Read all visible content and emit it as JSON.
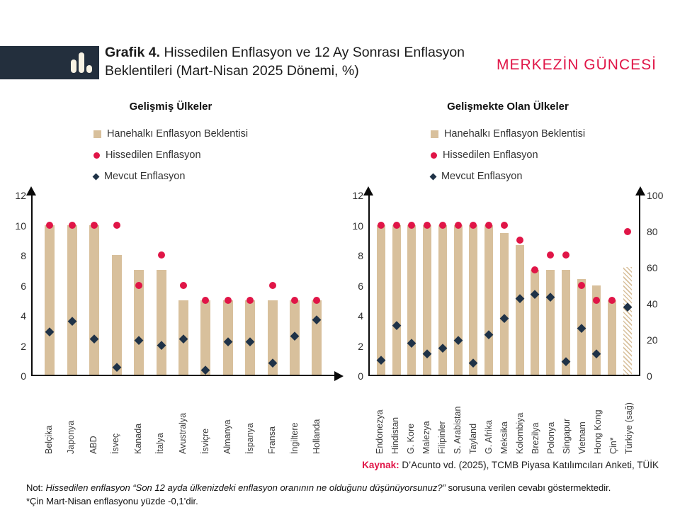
{
  "header": {
    "title_bold": "Grafik 4.",
    "title_rest": " Hissedilen Enflasyon ve 12 Ay Sonrası Enflasyon Beklentileri (Mart-Nisan 2025 Dönemi, %)",
    "brand": "MERKEZİN GÜNCESİ",
    "logo_icon": "bar-chart-icon"
  },
  "colors": {
    "bar": "#d8c09c",
    "perceived": "#e01547",
    "current": "#1f3247",
    "accent": "#e01547",
    "logo_bg": "#232f3d"
  },
  "legend": {
    "bar_label": "Hanehalkı Enflasyon Beklentisi",
    "dot_label": "Hissedilen Enflasyon",
    "diamond_label": "Mevcut Enflasyon"
  },
  "chart_data": [
    {
      "type": "bar",
      "title": "Gelişmiş Ülkeler",
      "categories": [
        "Belçika",
        "Japonya",
        "ABD",
        "İsveç",
        "Kanada",
        "İtalya",
        "Avustralya",
        "İsviçre",
        "Almanya",
        "İspanya",
        "Fransa",
        "İngiltere",
        "Hollanda"
      ],
      "series": [
        {
          "name": "Hanehalkı Enflasyon Beklentisi",
          "marker": "bar",
          "values": [
            10,
            10,
            10,
            8,
            7,
            7,
            5,
            5,
            5,
            5,
            5,
            5,
            5
          ]
        },
        {
          "name": "Hissedilen Enflasyon",
          "marker": "dot",
          "values": [
            10,
            10,
            10,
            10,
            6,
            8,
            6,
            5,
            5,
            5,
            6,
            5,
            5
          ]
        },
        {
          "name": "Mevcut Enflasyon",
          "marker": "diamond",
          "values": [
            2.9,
            3.6,
            2.4,
            0.5,
            2.3,
            2.0,
            2.4,
            0.3,
            2.2,
            2.2,
            0.8,
            2.6,
            3.7
          ]
        }
      ],
      "ylim": [
        0,
        12
      ],
      "yticks": [
        0,
        2,
        4,
        6,
        8,
        10,
        12
      ],
      "grid": false,
      "legend_position": "top-center",
      "x_arrow": true
    },
    {
      "type": "bar",
      "title": "Gelişmekte Olan Ülkeler",
      "categories": [
        "Endonezya",
        "Hindistan",
        "G. Kore",
        "Malezya",
        "Filipinler",
        "S. Arabistan",
        "Tayland",
        "G. Afrika",
        "Meksika",
        "Kolombiya",
        "Brezilya",
        "Polonya",
        "Singapur",
        "Vietnam",
        "Hong Kong",
        "Çin*",
        "Türkiye (sağ)"
      ],
      "series": [
        {
          "name": "Hanehalkı Enflasyon Beklentisi",
          "marker": "bar",
          "values": [
            10,
            10,
            10,
            10,
            10,
            10,
            10,
            10,
            9.5,
            8.7,
            7,
            7,
            7,
            6.4,
            6,
            5,
            60
          ]
        },
        {
          "name": "Hissedilen Enflasyon",
          "marker": "dot",
          "values": [
            10,
            10,
            10,
            10,
            10,
            10,
            10,
            10,
            10,
            9,
            7,
            8,
            8,
            6,
            5,
            5,
            80
          ]
        },
        {
          "name": "Mevcut Enflasyon",
          "marker": "diamond",
          "values": [
            1.0,
            3.3,
            2.1,
            1.4,
            1.8,
            2.3,
            0.8,
            2.7,
            3.8,
            5.1,
            5.4,
            5.2,
            0.9,
            3.1,
            1.4,
            null,
            38
          ]
        }
      ],
      "ylim": [
        0,
        12
      ],
      "yticks": [
        0,
        2,
        4,
        6,
        8,
        10,
        12
      ],
      "ylim_right": [
        0,
        100
      ],
      "yticks_right": [
        0,
        20,
        40,
        60,
        80,
        100
      ],
      "right_axis_index": 16,
      "hatched_index": 16,
      "grid": false,
      "legend_position": "top-center",
      "x_arrow": false
    }
  ],
  "footer": {
    "source_label": "Kaynak:",
    "source_text": " D’Acunto vd. (2025), TCMB Piyasa Katılımcıları Anketi, TÜİK",
    "note_label": "Not: ",
    "note_italic": "Hissedilen enflasyon “Son 12 ayda ülkenizdeki enflasyon oranının ne olduğunu düşünüyorsunuz?”",
    "note_rest": " sorusuna verilen cevabı göstermektedir.",
    "note_line2": "*Çin Mart-Nisan enflasyonu yüzde -0,1’dir."
  }
}
